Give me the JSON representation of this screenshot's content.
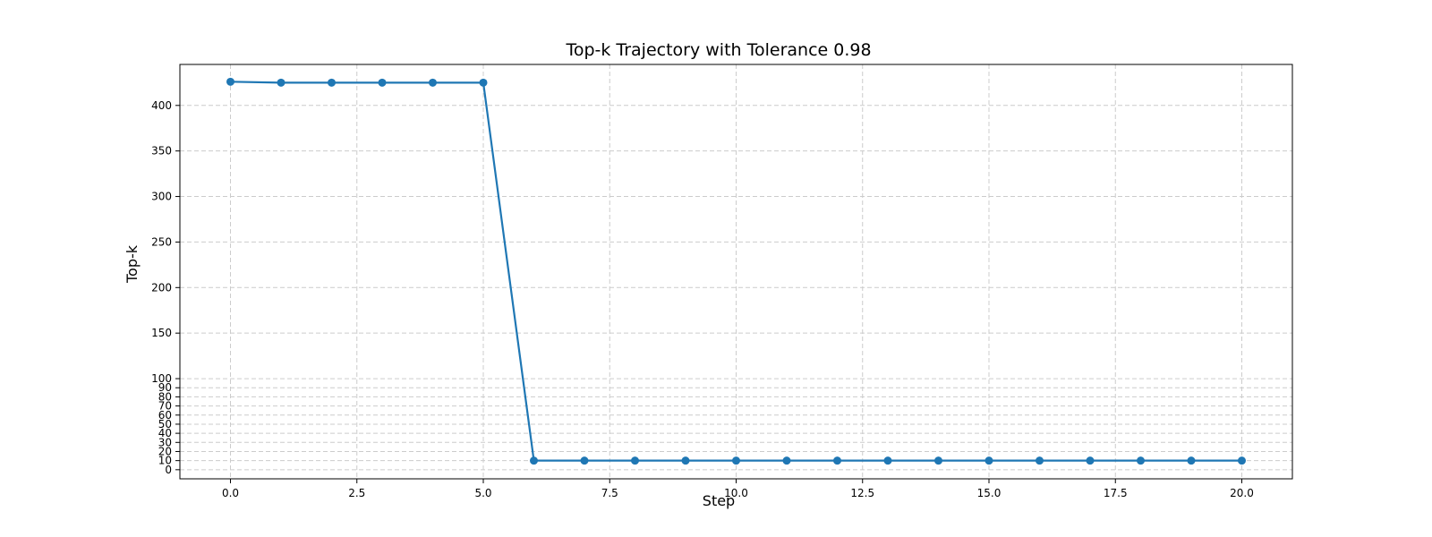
{
  "chart_data": {
    "type": "line",
    "title": "Top-k Trajectory with Tolerance 0.98",
    "xlabel": "Step",
    "ylabel": "Top-k",
    "xlim": [
      -1,
      21
    ],
    "ylim": [
      -10,
      445
    ],
    "x_ticks": [
      0,
      2.5,
      5,
      7.5,
      10,
      12.5,
      15,
      17.5,
      20
    ],
    "x_tick_labels": [
      "0.0",
      "2.5",
      "5.0",
      "7.5",
      "10.0",
      "12.5",
      "15.0",
      "17.5",
      "20.0"
    ],
    "y_ticks": [
      0,
      10,
      20,
      30,
      40,
      50,
      60,
      70,
      80,
      90,
      100,
      150,
      200,
      250,
      300,
      350,
      400
    ],
    "y_tick_labels": [
      "0",
      "10",
      "20",
      "30",
      "40",
      "50",
      "60",
      "70",
      "80",
      "90",
      "100",
      "150",
      "200",
      "250",
      "300",
      "350",
      "400"
    ],
    "grid": true,
    "color": "#1f77b4",
    "series": [
      {
        "x": [
          0,
          1,
          2,
          3,
          4,
          5,
          6,
          7,
          8,
          9,
          10,
          11,
          12,
          13,
          14,
          15,
          16,
          17,
          18,
          19,
          20
        ],
        "values": [
          426,
          425,
          425,
          425,
          425,
          425,
          10,
          10,
          10,
          10,
          10,
          10,
          10,
          10,
          10,
          10,
          10,
          10,
          10,
          10,
          10
        ]
      }
    ]
  }
}
